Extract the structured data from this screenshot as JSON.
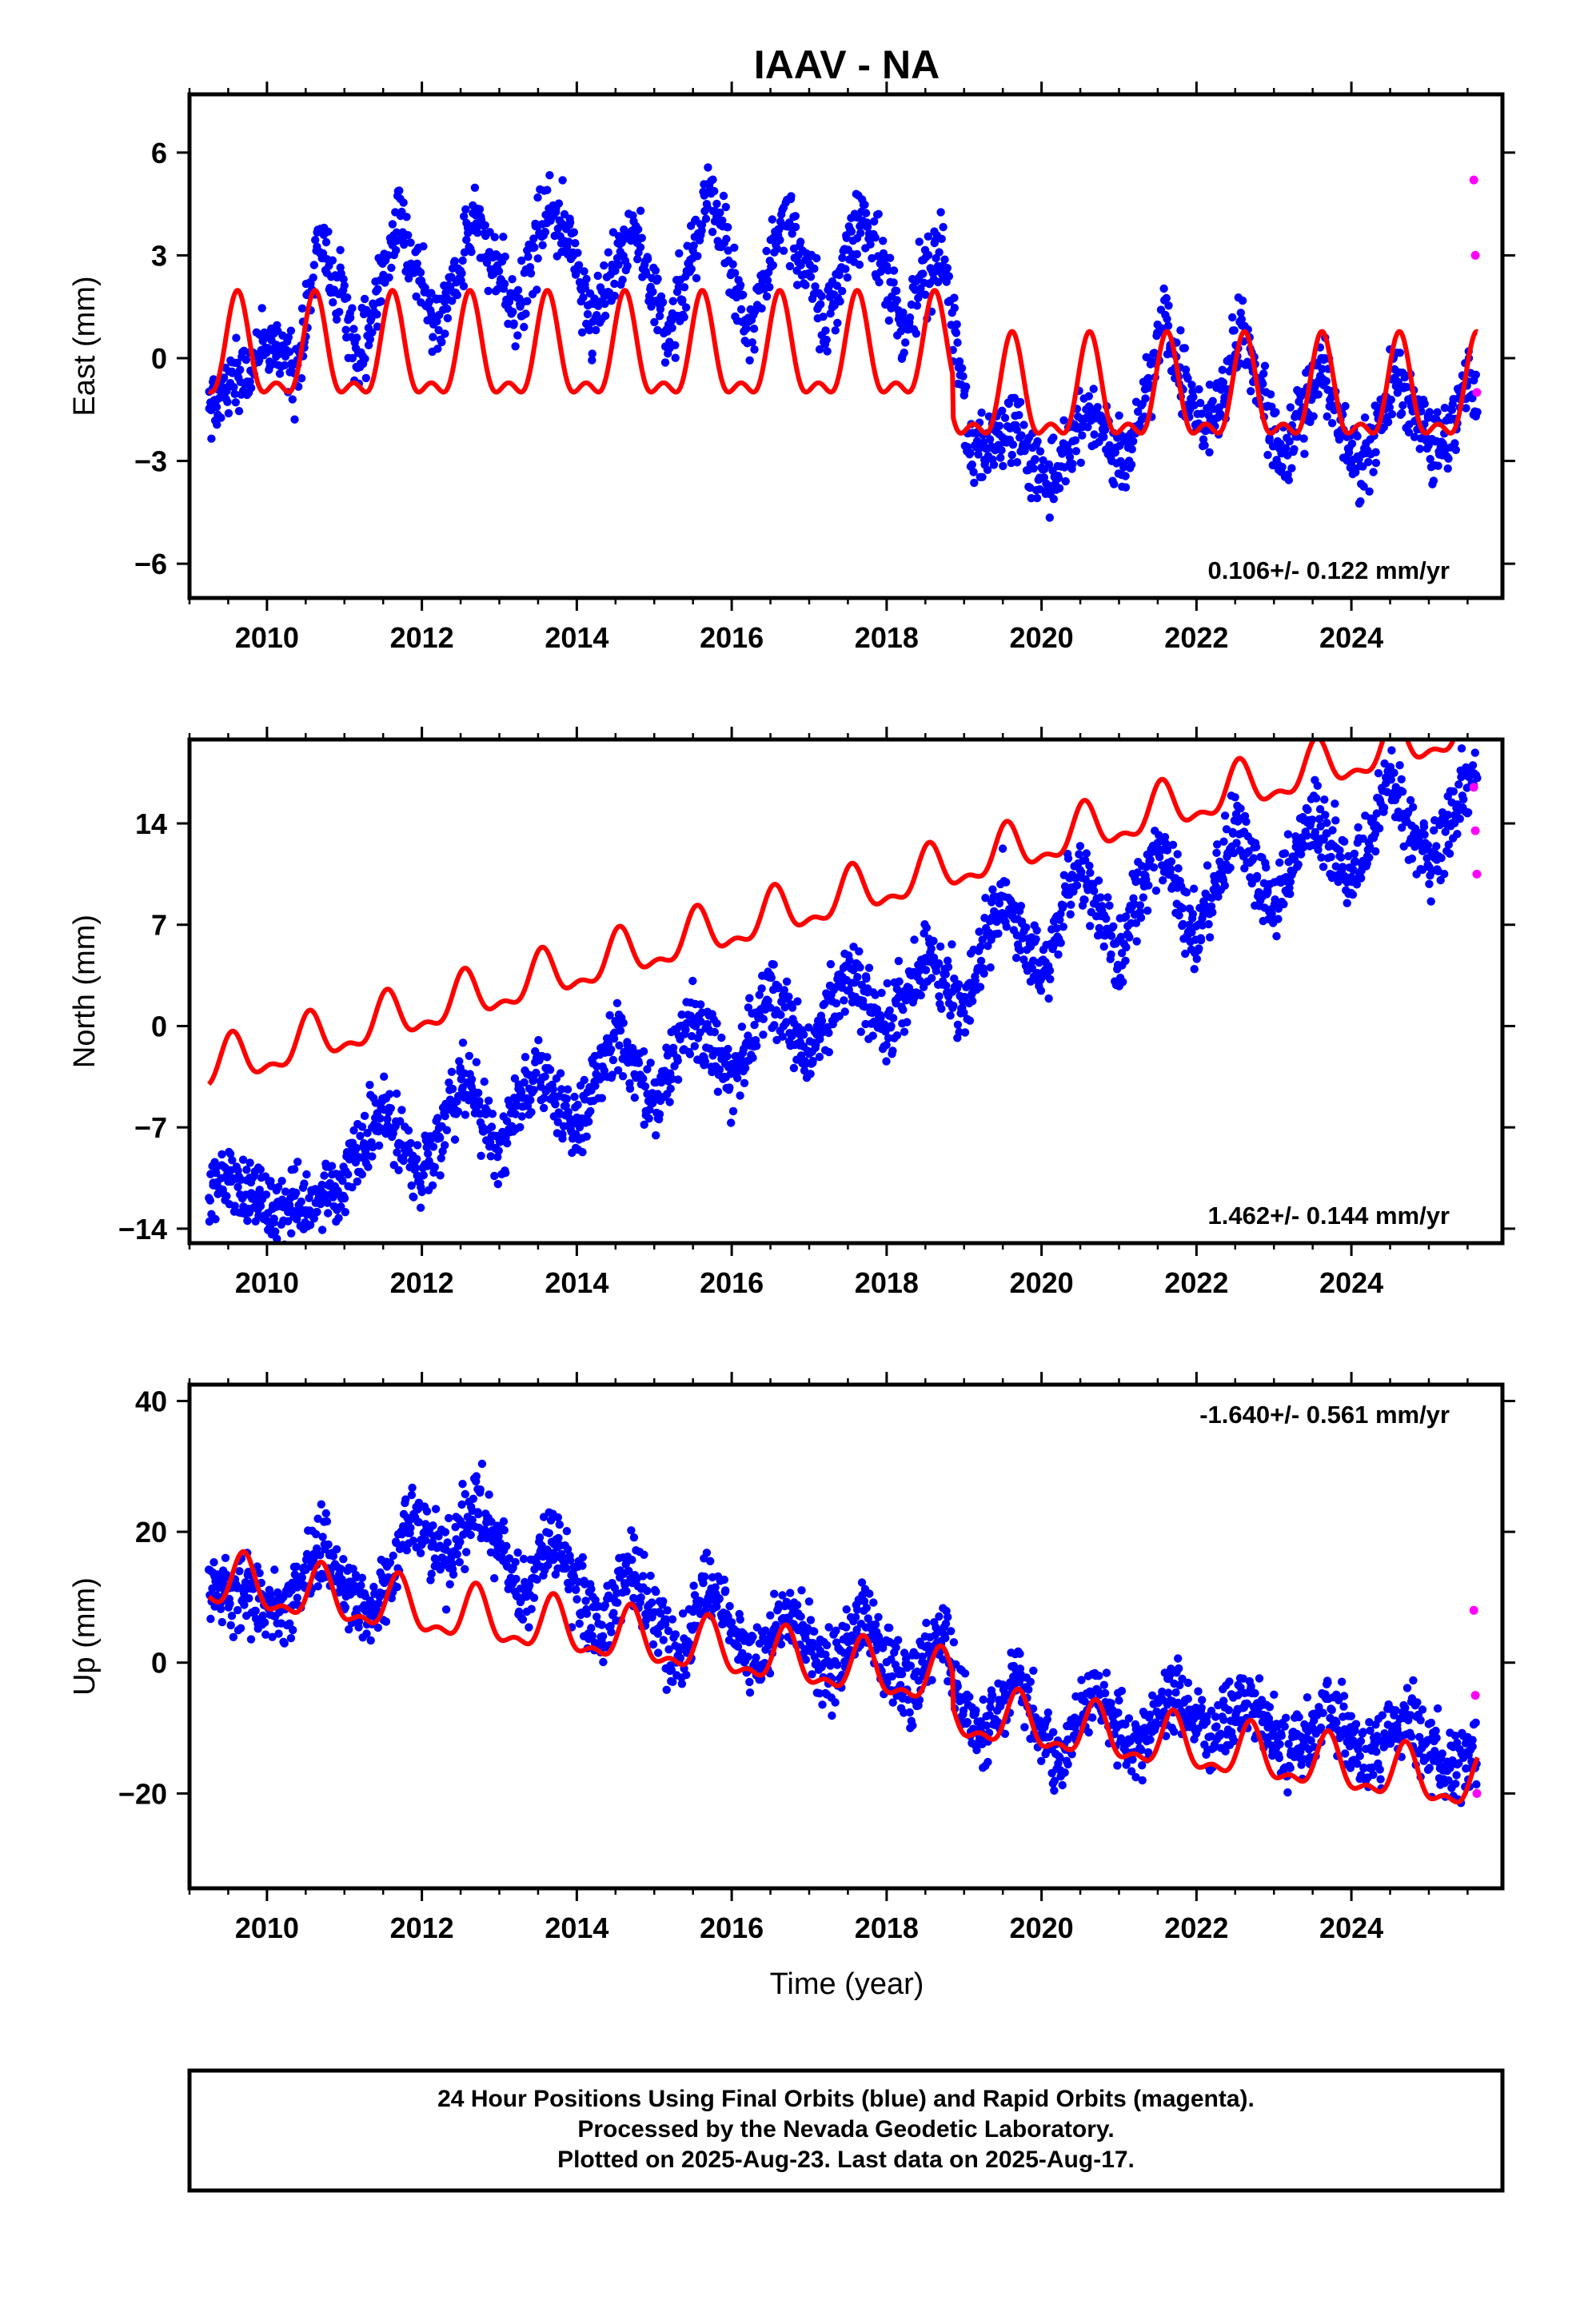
{
  "title": "IAAV - NA",
  "xlabel": "Time (year)",
  "caption": [
    "24 Hour Positions Using Final Orbits (blue) and Rapid Orbits (magenta).",
    "Processed by the Nevada Geodetic Laboratory.",
    "Plotted on 2025-Aug-23. Last data on 2025-Aug-17."
  ],
  "colors": {
    "final": "#0000ff",
    "rapid": "#ff00ff",
    "model": "#ff0000",
    "frame": "#000000"
  },
  "chart_data": [
    {
      "type": "scatter",
      "ylabel": "East (mm)",
      "rate_label": "0.106+/- 0.122 mm/yr",
      "rate_position": "bottom-right",
      "xlim": [
        2009.0,
        2025.95
      ],
      "ylim": [
        -7.0,
        7.7
      ],
      "xticks": [
        2010,
        2012,
        2014,
        2016,
        2018,
        2020,
        2022,
        2024
      ],
      "yticks": [
        -6,
        -3,
        0,
        3,
        6
      ],
      "ytick_labels": [
        "−6",
        "−3",
        "0",
        "3",
        "6"
      ],
      "data_start": 2009.25,
      "data_end": 2025.63,
      "rapid_start": 2025.55,
      "series": [
        {
          "name": "Final Orbits (blue)",
          "x": [
            2009.3,
            2010.1,
            2010.4,
            2010.7,
            2011.2,
            2011.7,
            2012.2,
            2012.7,
            2013.2,
            2013.7,
            2014.2,
            2014.7,
            2015.2,
            2015.7,
            2016.2,
            2016.7,
            2017.2,
            2017.7,
            2018.2,
            2018.7,
            2019.1,
            2019.6,
            2020.1,
            2020.6,
            2021.1,
            2021.6,
            2022.1,
            2022.6,
            2023.1,
            2023.6,
            2024.1,
            2024.6,
            2025.1,
            2025.5
          ],
          "y": [
            -1.3,
            0.5,
            -0.5,
            3.5,
            0.0,
            4.0,
            0.8,
            4.2,
            1.2,
            4.8,
            1.0,
            4.0,
            0.6,
            5.0,
            0.9,
            4.2,
            1.0,
            4.3,
            1.0,
            3.3,
            -2.8,
            -2.0,
            -3.8,
            -1.5,
            -3.0,
            1.0,
            -2.3,
            0.8,
            -3.0,
            -0.2,
            -3.5,
            -0.5,
            -2.7,
            -1.0
          ]
        },
        {
          "name": "Rapid Orbits (magenta)",
          "x": [
            2025.58,
            2025.6,
            2025.62
          ],
          "y": [
            5.2,
            3.0,
            -1.0
          ]
        },
        {
          "name": "Model fit (red)",
          "offset": 0.0,
          "amplitude": 1.8,
          "phase_peak": 0.62,
          "steps": [
            {
              "at": 2018.85,
              "delta": -1.2
            }
          ]
        }
      ]
    },
    {
      "type": "scatter",
      "ylabel": "North (mm)",
      "rate_label": "1.462+/- 0.144 mm/yr",
      "rate_position": "bottom-right",
      "xlim": [
        2009.0,
        2025.95
      ],
      "ylim": [
        -15.0,
        19.8
      ],
      "xticks": [
        2010,
        2012,
        2014,
        2016,
        2018,
        2020,
        2022,
        2024
      ],
      "yticks": [
        -14,
        -7,
        0,
        7,
        14
      ],
      "ytick_labels": [
        "−14",
        "−7",
        "0",
        "7",
        "14"
      ],
      "data_start": 2009.25,
      "data_end": 2025.63,
      "rapid_start": 2025.55,
      "series": [
        {
          "name": "Final Orbits (blue)",
          "x": [
            2009.3,
            2010.0,
            2011.0,
            2011.5,
            2012.0,
            2012.5,
            2013.0,
            2013.5,
            2014.0,
            2014.5,
            2015.0,
            2015.5,
            2016.0,
            2016.5,
            2017.0,
            2017.5,
            2018.0,
            2018.5,
            2019.0,
            2019.5,
            2020.0,
            2020.5,
            2021.0,
            2021.5,
            2022.0,
            2022.5,
            2023.0,
            2023.5,
            2024.0,
            2024.5,
            2025.0,
            2025.5
          ],
          "y": [
            -10.5,
            -12.5,
            -11.0,
            -5.5,
            -10.5,
            -3.5,
            -8.5,
            -2.5,
            -7.0,
            -0.8,
            -5.5,
            0.5,
            -4.0,
            2.5,
            -2.0,
            3.5,
            -0.5,
            5.0,
            1.5,
            9.0,
            3.0,
            11.5,
            4.5,
            12.5,
            6.0,
            14.0,
            8.0,
            15.0,
            9.5,
            17.0,
            11.0,
            17.5
          ]
        },
        {
          "name": "Rapid Orbits (magenta)",
          "x": [
            2025.58,
            2025.6,
            2025.62
          ],
          "y": [
            16.5,
            13.5,
            10.5
          ]
        },
        {
          "name": "Model fit (red)",
          "offset": -1.9,
          "slope": 1.45,
          "amplitude": 2.0,
          "phase_peak": 0.55,
          "steps": []
        }
      ]
    },
    {
      "type": "scatter",
      "ylabel": "Up (mm)",
      "rate_label": "-1.640+/- 0.561 mm/yr",
      "rate_position": "top-right",
      "xlim": [
        2009.0,
        2025.95
      ],
      "ylim": [
        -34.5,
        42.5
      ],
      "xticks": [
        2010,
        2012,
        2014,
        2016,
        2018,
        2020,
        2022,
        2024
      ],
      "yticks": [
        -20,
        0,
        20,
        40
      ],
      "ytick_labels": [
        "−20",
        "0",
        "20",
        "40"
      ],
      "data_start": 2009.25,
      "data_end": 2025.63,
      "rapid_start": 2025.55,
      "series": [
        {
          "name": "Final Orbits (blue)",
          "x": [
            2009.3,
            2010.2,
            2010.7,
            2011.3,
            2011.9,
            2012.3,
            2012.7,
            2013.3,
            2013.7,
            2014.3,
            2014.7,
            2015.3,
            2015.7,
            2016.3,
            2016.7,
            2017.3,
            2017.7,
            2018.3,
            2018.7,
            2019.2,
            2019.7,
            2020.2,
            2020.7,
            2021.2,
            2021.7,
            2022.2,
            2022.7,
            2023.2,
            2023.7,
            2024.2,
            2024.7,
            2025.2,
            2025.5
          ],
          "y": [
            11.5,
            8.0,
            18.0,
            7.0,
            22.0,
            15.0,
            25.0,
            10.0,
            18.0,
            5.0,
            14.0,
            0.0,
            12.0,
            0.0,
            8.0,
            -2.0,
            7.0,
            -4.0,
            4.0,
            -12.0,
            -2.0,
            -16.0,
            -4.0,
            -14.0,
            -5.0,
            -13.0,
            -5.0,
            -15.0,
            -6.0,
            -16.0,
            -8.0,
            -16.0,
            -14.0
          ]
        },
        {
          "name": "Rapid Orbits (magenta)",
          "x": [
            2025.58,
            2025.6,
            2025.62
          ],
          "y": [
            8.0,
            -5.0,
            -20.0
          ]
        },
        {
          "name": "Model fit (red)",
          "offset": 11.0,
          "slope": -1.6,
          "amplitude": 5.0,
          "phase_peak": 0.7,
          "steps": [
            {
              "at": 2018.85,
              "delta": -5.0
            }
          ]
        }
      ]
    }
  ]
}
